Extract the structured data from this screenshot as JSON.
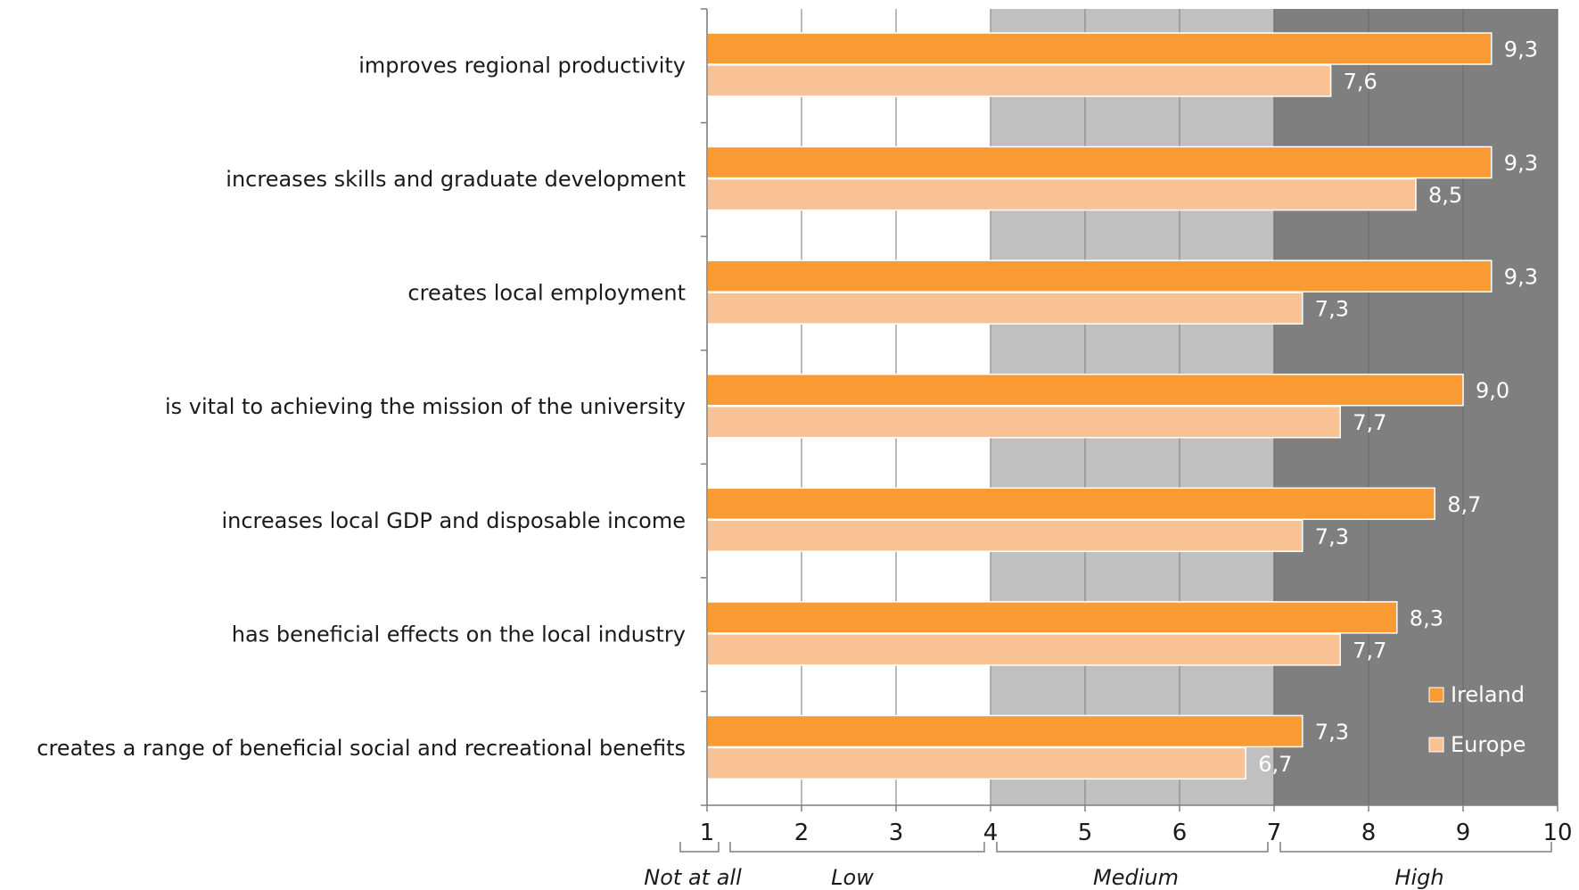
{
  "chart_data": {
    "type": "bar",
    "orientation": "horizontal",
    "categories": [
      "improves regional productivity",
      "increases skills and graduate development",
      "creates local employment",
      "is vital to achieving the mission of the university",
      "increases local GDP and disposable income",
      "has beneficial effects on the local industry",
      "creates a range of beneficial social and recreational benefits"
    ],
    "series": [
      {
        "name": "Ireland",
        "color": "#f99a33",
        "values": [
          9.3,
          9.3,
          9.3,
          9.0,
          8.7,
          8.3,
          7.3
        ]
      },
      {
        "name": "Europe",
        "color": "#f9c295",
        "values": [
          7.6,
          8.5,
          7.3,
          7.7,
          7.3,
          7.7,
          6.7
        ]
      }
    ],
    "value_labels": {
      "Ireland": [
        "9,3",
        "9,3",
        "9,3",
        "9,0",
        "8,7",
        "8,3",
        "7,3"
      ],
      "Europe": [
        "7,6",
        "8,5",
        "7,3",
        "7,7",
        "7,3",
        "7,7",
        "6,7"
      ]
    },
    "xlim": [
      1,
      10
    ],
    "xticks": [
      "1",
      "2",
      "3",
      "4",
      "5",
      "6",
      "7",
      "8",
      "9",
      "10"
    ],
    "zones": [
      {
        "label": "Not at all",
        "from": 1,
        "to": 1,
        "shade": "#ffffff"
      },
      {
        "label": "Low",
        "from": 1,
        "to": 4,
        "shade": "#ffffff"
      },
      {
        "label": "Medium",
        "from": 4,
        "to": 7,
        "shade": "#c0c0c0"
      },
      {
        "label": "High",
        "from": 7,
        "to": 10,
        "shade": "#7f7f7f"
      }
    ],
    "grid": true,
    "legend_position": "bottom-right",
    "title": "",
    "xlabel": "",
    "ylabel": ""
  }
}
